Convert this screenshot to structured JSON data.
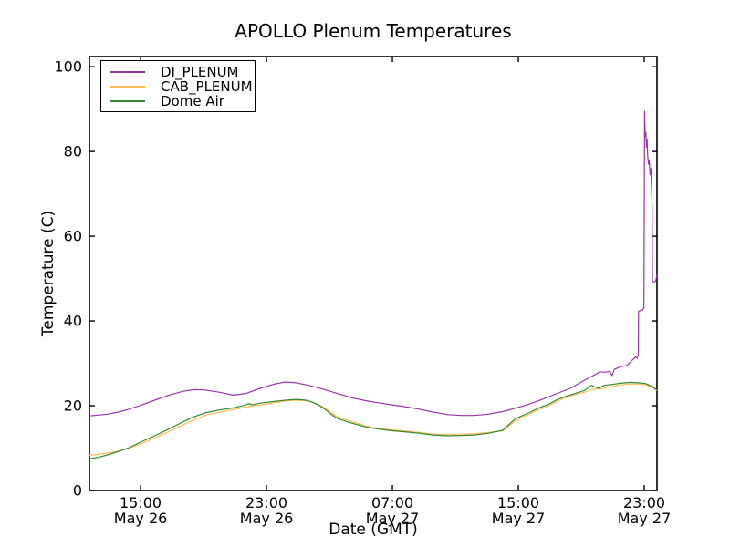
{
  "chart_data": {
    "type": "line",
    "title": "APOLLO Plenum Temperatures",
    "xlabel": "Date (GMT)",
    "ylabel": "Temperature (C)",
    "grid": false,
    "legend_position": "upper left",
    "background": "#ffffff",
    "frame_color": "#000000",
    "x_unit_note": "hours since May 26 00:00 GMT",
    "xlim": [
      11.75,
      47.81
    ],
    "ylim": [
      0,
      102.4
    ],
    "y_ticks": [
      0,
      20,
      40,
      60,
      80,
      100
    ],
    "x_ticks": [
      {
        "value": 15,
        "label": "15:00",
        "sublabel": "May 26"
      },
      {
        "value": 23,
        "label": "23:00",
        "sublabel": "May 26"
      },
      {
        "value": 31,
        "label": "07:00",
        "sublabel": "May 27"
      },
      {
        "value": 39,
        "label": "15:00",
        "sublabel": "May 27"
      },
      {
        "value": 47,
        "label": "23:00",
        "sublabel": "May 27"
      }
    ],
    "series": [
      {
        "name": "DI_PLENUM",
        "color": "#9933AA",
        "points": [
          [
            11.75,
            17.6
          ],
          [
            12.3,
            17.8
          ],
          [
            12.9,
            18.0
          ],
          [
            13.6,
            18.5
          ],
          [
            14.2,
            19.1
          ],
          [
            15.0,
            20.1
          ],
          [
            15.9,
            21.3
          ],
          [
            16.8,
            22.5
          ],
          [
            17.7,
            23.4
          ],
          [
            18.4,
            23.8
          ],
          [
            19.1,
            23.7
          ],
          [
            20.0,
            23.2
          ],
          [
            20.9,
            22.5
          ],
          [
            21.7,
            22.9
          ],
          [
            22.6,
            24.1
          ],
          [
            23.5,
            25.1
          ],
          [
            24.2,
            25.6
          ],
          [
            24.9,
            25.4
          ],
          [
            25.8,
            24.7
          ],
          [
            26.7,
            23.8
          ],
          [
            27.5,
            22.9
          ],
          [
            28.4,
            21.9
          ],
          [
            29.3,
            21.2
          ],
          [
            30.1,
            20.7
          ],
          [
            31.0,
            20.2
          ],
          [
            31.9,
            19.7
          ],
          [
            32.7,
            19.2
          ],
          [
            33.6,
            18.5
          ],
          [
            34.5,
            17.9
          ],
          [
            35.4,
            17.7
          ],
          [
            36.2,
            17.7
          ],
          [
            37.1,
            18.0
          ],
          [
            38.0,
            18.6
          ],
          [
            38.8,
            19.4
          ],
          [
            39.7,
            20.4
          ],
          [
            40.6,
            21.6
          ],
          [
            41.4,
            22.8
          ],
          [
            42.3,
            24.1
          ],
          [
            43.2,
            26.0
          ],
          [
            43.9,
            27.4
          ],
          [
            44.2,
            28.0
          ],
          [
            44.5,
            27.9
          ],
          [
            44.8,
            28.1
          ],
          [
            44.95,
            27.1
          ],
          [
            45.1,
            28.6
          ],
          [
            45.5,
            29.2
          ],
          [
            45.9,
            29.5
          ],
          [
            46.1,
            30.2
          ],
          [
            46.3,
            31.0
          ],
          [
            46.45,
            31.5
          ],
          [
            46.55,
            31.2
          ],
          [
            46.62,
            32.0
          ],
          [
            46.64,
            42.3
          ],
          [
            46.9,
            42.6
          ],
          [
            46.98,
            43.2
          ],
          [
            47.02,
            89.5
          ],
          [
            47.06,
            83.5
          ],
          [
            47.1,
            84.5
          ],
          [
            47.14,
            81.0
          ],
          [
            47.18,
            83.0
          ],
          [
            47.22,
            79.0
          ],
          [
            47.27,
            77.0
          ],
          [
            47.32,
            78.0
          ],
          [
            47.37,
            74.5
          ],
          [
            47.42,
            76.0
          ],
          [
            47.46,
            71.5
          ],
          [
            47.5,
            67.0
          ],
          [
            47.52,
            49.3
          ],
          [
            47.65,
            49.2
          ],
          [
            47.73,
            49.5
          ],
          [
            47.81,
            50.8
          ]
        ]
      },
      {
        "name": "CAB_PLENUM",
        "color": "#FFBD55",
        "points": [
          [
            11.75,
            8.3
          ],
          [
            12.3,
            8.5
          ],
          [
            12.9,
            8.8
          ],
          [
            13.6,
            9.3
          ],
          [
            14.2,
            9.9
          ],
          [
            15.0,
            11.0
          ],
          [
            15.9,
            12.4
          ],
          [
            16.8,
            13.9
          ],
          [
            17.7,
            15.5
          ],
          [
            18.4,
            16.7
          ],
          [
            19.1,
            17.7
          ],
          [
            20.0,
            18.5
          ],
          [
            20.9,
            19.1
          ],
          [
            21.7,
            19.7
          ],
          [
            22.6,
            20.2
          ],
          [
            23.5,
            20.7
          ],
          [
            24.2,
            21.1
          ],
          [
            24.9,
            21.3
          ],
          [
            25.5,
            21.2
          ],
          [
            25.8,
            20.9
          ],
          [
            26.3,
            20.3
          ],
          [
            26.7,
            19.5
          ],
          [
            27.1,
            18.4
          ],
          [
            27.5,
            17.4
          ],
          [
            28.0,
            16.8
          ],
          [
            28.4,
            16.3
          ],
          [
            28.9,
            15.7
          ],
          [
            29.3,
            15.2
          ],
          [
            30.1,
            14.6
          ],
          [
            31.0,
            14.3
          ],
          [
            31.9,
            14.0
          ],
          [
            32.7,
            13.7
          ],
          [
            33.6,
            13.3
          ],
          [
            34.5,
            13.2
          ],
          [
            35.4,
            13.3
          ],
          [
            36.2,
            13.4
          ],
          [
            37.1,
            13.7
          ],
          [
            38.0,
            14.1
          ],
          [
            38.8,
            16.4
          ],
          [
            39.7,
            18.0
          ],
          [
            40.3,
            19.1
          ],
          [
            40.9,
            19.9
          ],
          [
            41.4,
            20.9
          ],
          [
            42.0,
            21.9
          ],
          [
            42.6,
            22.6
          ],
          [
            43.2,
            23.2
          ],
          [
            43.75,
            23.9
          ],
          [
            44.3,
            24.0
          ],
          [
            44.9,
            24.5
          ],
          [
            45.5,
            24.9
          ],
          [
            46.1,
            25.1
          ],
          [
            46.65,
            25.1
          ],
          [
            47.1,
            24.9
          ],
          [
            47.46,
            24.4
          ],
          [
            47.81,
            23.6
          ]
        ]
      },
      {
        "name": "Dome Air",
        "color": "#338833",
        "points": [
          [
            11.75,
            7.5
          ],
          [
            12.3,
            7.8
          ],
          [
            12.9,
            8.4
          ],
          [
            13.6,
            9.2
          ],
          [
            14.2,
            10.0
          ],
          [
            15.0,
            11.4
          ],
          [
            15.9,
            12.9
          ],
          [
            16.8,
            14.5
          ],
          [
            17.7,
            16.2
          ],
          [
            18.4,
            17.4
          ],
          [
            19.1,
            18.3
          ],
          [
            20.0,
            19.0
          ],
          [
            20.9,
            19.5
          ],
          [
            21.6,
            20.1
          ],
          [
            21.9,
            20.5
          ],
          [
            22.1,
            20.2
          ],
          [
            22.6,
            20.6
          ],
          [
            23.5,
            21.0
          ],
          [
            24.2,
            21.3
          ],
          [
            24.9,
            21.5
          ],
          [
            25.5,
            21.3
          ],
          [
            25.8,
            21.0
          ],
          [
            26.3,
            20.2
          ],
          [
            26.7,
            19.2
          ],
          [
            27.1,
            18.0
          ],
          [
            27.5,
            17.0
          ],
          [
            28.0,
            16.4
          ],
          [
            28.4,
            15.9
          ],
          [
            28.9,
            15.4
          ],
          [
            29.3,
            15.0
          ],
          [
            30.1,
            14.5
          ],
          [
            31.0,
            14.1
          ],
          [
            31.9,
            13.8
          ],
          [
            32.7,
            13.5
          ],
          [
            33.6,
            13.1
          ],
          [
            34.5,
            12.9
          ],
          [
            35.4,
            13.0
          ],
          [
            36.2,
            13.1
          ],
          [
            37.1,
            13.5
          ],
          [
            38.0,
            14.2
          ],
          [
            38.8,
            16.9
          ],
          [
            39.7,
            18.4
          ],
          [
            40.3,
            19.5
          ],
          [
            40.9,
            20.3
          ],
          [
            41.4,
            21.3
          ],
          [
            42.0,
            22.2
          ],
          [
            42.6,
            22.9
          ],
          [
            43.2,
            23.6
          ],
          [
            43.64,
            24.8
          ],
          [
            44.1,
            24.1
          ],
          [
            44.45,
            24.8
          ],
          [
            44.9,
            25.0
          ],
          [
            45.5,
            25.3
          ],
          [
            46.07,
            25.5
          ],
          [
            46.65,
            25.4
          ],
          [
            47.11,
            25.2
          ],
          [
            47.46,
            24.6
          ],
          [
            47.81,
            23.7
          ]
        ]
      }
    ]
  }
}
